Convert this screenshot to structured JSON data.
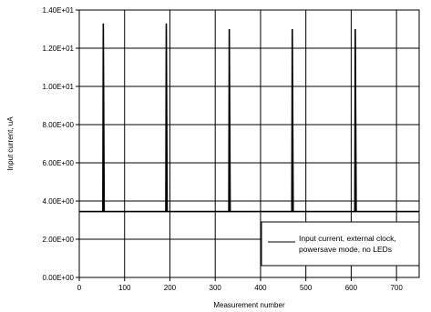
{
  "chart_data": {
    "type": "line",
    "title": "",
    "xlabel": "Measurement number",
    "ylabel": "Input current, uA",
    "xlim": [
      0,
      750
    ],
    "ylim": [
      0,
      14
    ],
    "grid": true,
    "legend_position": "bottom-right",
    "x_ticks": [
      "0",
      "100",
      "200",
      "300",
      "400",
      "500",
      "600",
      "700"
    ],
    "y_ticks": [
      "0.00E+00",
      "2.00E+00",
      "4.00E+00",
      "6.00E+00",
      "8.00E+00",
      "1.00E+01",
      "1.20E+01",
      "1.40E+01"
    ],
    "series": [
      {
        "name": "Input current, external clock, powersave mode, no LEDs",
        "color": "#000000",
        "baseline": 3.45,
        "points": [
          [
            0,
            3.45
          ],
          [
            52,
            3.45
          ],
          [
            53,
            13.3
          ],
          [
            55,
            3.45
          ],
          [
            191,
            3.45
          ],
          [
            192,
            13.3
          ],
          [
            194,
            3.45
          ],
          [
            330,
            3.45
          ],
          [
            331,
            13.0
          ],
          [
            333,
            3.45
          ],
          [
            469,
            3.45
          ],
          [
            470,
            13.0
          ],
          [
            472,
            3.45
          ],
          [
            608,
            3.45
          ],
          [
            609,
            13.0
          ],
          [
            611,
            3.45
          ],
          [
            750,
            3.45
          ]
        ]
      }
    ]
  }
}
